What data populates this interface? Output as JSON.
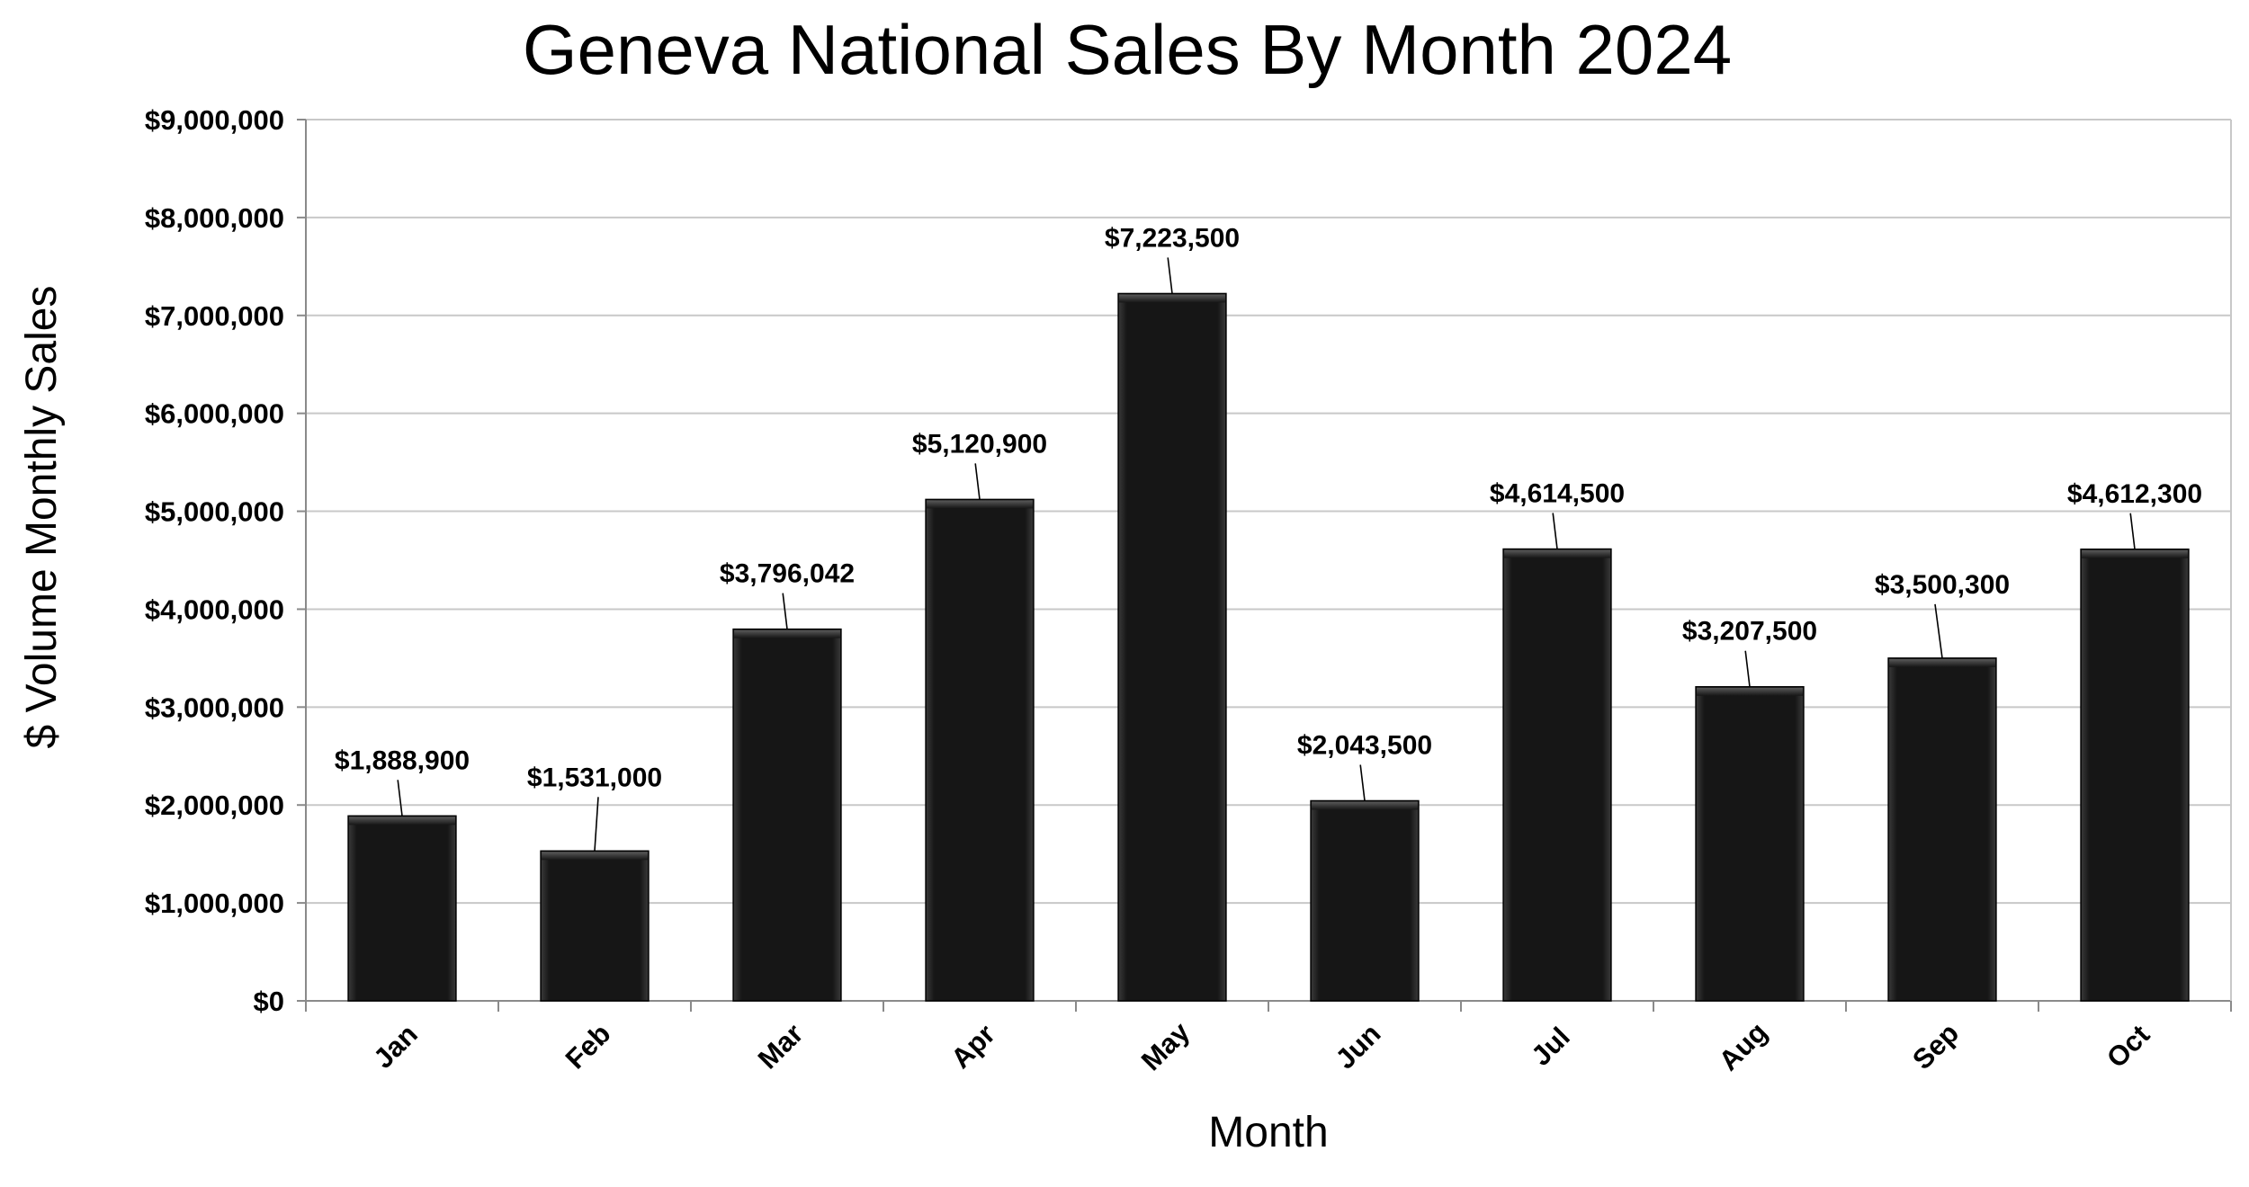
{
  "chart_data": {
    "type": "bar",
    "title": "Geneva National Sales By Month 2024",
    "xlabel": "Month",
    "ylabel": "$ Volume Monthly Sales",
    "categories": [
      "Jan",
      "Feb",
      "Mar",
      "Apr",
      "May",
      "Jun",
      "Jul",
      "Aug",
      "Sep",
      "Oct"
    ],
    "values": [
      1888900,
      1531000,
      3796042,
      5120900,
      7223500,
      2043500,
      4614500,
      3207500,
      3500300,
      4612300
    ],
    "data_labels": [
      "$1,888,900",
      "$1,531,000",
      "$3,796,042",
      "$5,120,900",
      "$7,223,500",
      "$2,043,500",
      "$4,614,500",
      "$3,207,500",
      "$3,500,300",
      "$4,612,300"
    ],
    "ylim": [
      0,
      9000000
    ],
    "yticks": [
      0,
      1000000,
      2000000,
      3000000,
      4000000,
      5000000,
      6000000,
      7000000,
      8000000,
      9000000
    ],
    "ytick_labels": [
      "$0",
      "$1,000,000",
      "$2,000,000",
      "$3,000,000",
      "$4,000,000",
      "$5,000,000",
      "$6,000,000",
      "$7,000,000",
      "$8,000,000",
      "$9,000,000"
    ],
    "grid": true,
    "legend": "none",
    "colors": {
      "bar": "#141414",
      "grid": "#c8c8c8",
      "axis": "#8a8a8a"
    }
  }
}
